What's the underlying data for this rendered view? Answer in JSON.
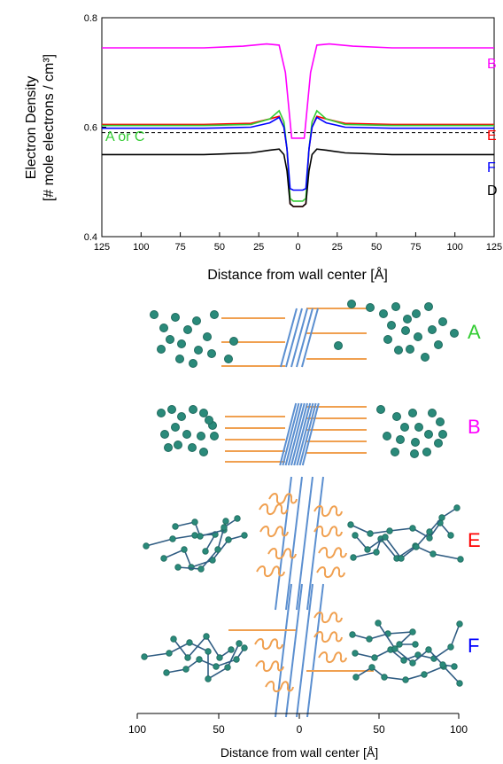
{
  "chart_data": {
    "type": "line",
    "ylabel_line1": "Electron Density",
    "ylabel_line2": "[# mole electrons / cm³]",
    "xlabel": "Distance from wall center [Å]",
    "ylim": [
      0.4,
      0.8
    ],
    "xlim": [
      125,
      -125
    ],
    "y_ticks": [
      "0.4",
      "0.6",
      "0.8"
    ],
    "x_ticks": [
      "125",
      "100",
      "75",
      "50",
      "25",
      "0",
      "25",
      "50",
      "75",
      "100",
      "125"
    ],
    "dashed_reference": 0.59,
    "curve_labels": [
      {
        "text": "B",
        "color": "#ff00ff"
      },
      {
        "text": "E",
        "color": "#ff0000"
      },
      {
        "text": "F",
        "color": "#0000ff"
      },
      {
        "text": "D",
        "color": "#000000"
      },
      {
        "text": "A or C",
        "color": "#33cc33"
      }
    ],
    "series": [
      {
        "id": "B",
        "color": "#ff00ff",
        "x": [
          -125,
          -60,
          -35,
          -20,
          -12,
          -8,
          -4,
          0,
          4,
          8,
          12,
          20,
          35,
          60,
          125
        ],
        "y": [
          0.745,
          0.745,
          0.748,
          0.752,
          0.75,
          0.7,
          0.58,
          0.58,
          0.58,
          0.7,
          0.75,
          0.752,
          0.748,
          0.745,
          0.745
        ]
      },
      {
        "id": "E",
        "color": "#ff0000",
        "x": [
          -125,
          -60,
          -30,
          -18,
          -12,
          -9,
          -7,
          -5,
          -3,
          0,
          3,
          5,
          7,
          9,
          12,
          18,
          30,
          60,
          125
        ],
        "y": [
          0.605,
          0.605,
          0.607,
          0.615,
          0.62,
          0.6,
          0.56,
          0.46,
          0.455,
          0.455,
          0.455,
          0.46,
          0.56,
          0.6,
          0.62,
          0.615,
          0.607,
          0.605,
          0.605
        ]
      },
      {
        "id": "A or C",
        "color": "#33cc33",
        "x": [
          -125,
          -60,
          -30,
          -18,
          -12,
          -9,
          -7,
          -5,
          -3,
          0,
          3,
          5,
          7,
          9,
          12,
          18,
          30,
          60,
          125
        ],
        "y": [
          0.603,
          0.603,
          0.605,
          0.615,
          0.63,
          0.61,
          0.56,
          0.47,
          0.465,
          0.465,
          0.465,
          0.47,
          0.56,
          0.61,
          0.63,
          0.615,
          0.605,
          0.603,
          0.603
        ]
      },
      {
        "id": "F",
        "color": "#0000ff",
        "x": [
          -125,
          -60,
          -30,
          -18,
          -12,
          -9,
          -7,
          -5,
          -3,
          0,
          3,
          5,
          7,
          9,
          12,
          18,
          30,
          60,
          125
        ],
        "y": [
          0.598,
          0.598,
          0.6,
          0.608,
          0.618,
          0.6,
          0.56,
          0.488,
          0.485,
          0.485,
          0.485,
          0.488,
          0.56,
          0.6,
          0.618,
          0.608,
          0.6,
          0.598,
          0.598
        ]
      },
      {
        "id": "D",
        "color": "#000000",
        "x": [
          -125,
          -60,
          -30,
          -18,
          -12,
          -9,
          -7,
          -5,
          -3,
          0,
          3,
          5,
          7,
          9,
          12,
          18,
          30,
          60,
          125
        ],
        "y": [
          0.55,
          0.55,
          0.553,
          0.558,
          0.56,
          0.55,
          0.52,
          0.46,
          0.455,
          0.455,
          0.455,
          0.46,
          0.52,
          0.55,
          0.56,
          0.558,
          0.553,
          0.55,
          0.55
        ]
      }
    ]
  },
  "schematic": {
    "xlabel": "Distance from wall center [Å]",
    "x_ticks": [
      "100",
      "50",
      "0",
      "50",
      "100"
    ],
    "panels": [
      {
        "label": "A",
        "color": "#33cc33"
      },
      {
        "label": "B",
        "color": "#ff00ff"
      },
      {
        "label": "E",
        "color": "#ff0000"
      },
      {
        "label": "F",
        "color": "#0000ff"
      }
    ]
  },
  "colors": {
    "sphere": "#2a8a7a",
    "sphere_edge": "#1f6a5e",
    "chain": "#2f5c82",
    "lipid": "#f0a050",
    "wall": "#5b8fd0"
  }
}
